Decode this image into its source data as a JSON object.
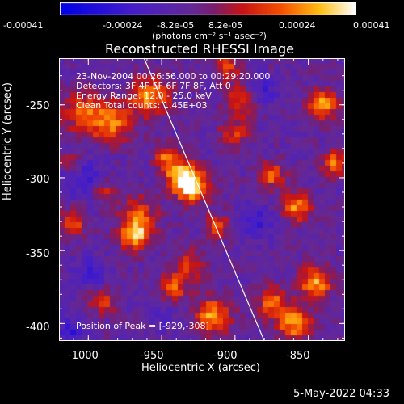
{
  "header": {
    "colorbar_ticks": [
      "-0.00041",
      "-0.00024",
      "-8.2e-05",
      "8.2e-05",
      "0.00024",
      "0.00041"
    ],
    "colorbar_units": "(photons cm⁻² s⁻¹ asec⁻²)",
    "title": "Reconstructed RHESSI Image"
  },
  "overlay": {
    "line1": "23-Nov-2004 00:26:56.000 to 00:29:20.000",
    "line2": "Detectors: 3F 4F 5F 6F 7F 8F, Att 0",
    "line3": "Energy Range: 12.0 - 25.0 keV",
    "line4": "Clean    Total counts: 1.45E+03",
    "peak": "Position of Peak = [-929,-308]"
  },
  "footer": {
    "timestamp": "5-May-2022 04:33"
  },
  "chart_data": {
    "type": "heatmap",
    "title": "Reconstructed RHESSI Image",
    "xlabel": "Heliocentric X (arcsec)",
    "ylabel": "Heliocentric Y (arcsec)",
    "xlim": [
      -1020,
      -825
    ],
    "ylim": [
      -412,
      -218
    ],
    "xticks": [
      -1000,
      -950,
      -900,
      -850
    ],
    "yticks": [
      -400,
      -350,
      -300,
      -250
    ],
    "xtick_labels": [
      "-1000",
      "-950",
      "-900",
      "-850"
    ],
    "ytick_labels": [
      "-400",
      "-350",
      "-300",
      "-250"
    ],
    "colorbar": {
      "min": -0.00041,
      "max": 0.00041
    },
    "limb_line": [
      [
        -962,
        -218
      ],
      [
        -880,
        -412
      ]
    ],
    "peak": [
      -929,
      -308
    ],
    "blobs": [
      [
        -929,
        -306,
        11,
        1.0
      ],
      [
        -938,
        -298,
        10,
        0.75
      ],
      [
        -968,
        -340,
        10,
        0.85
      ],
      [
        -966,
        -325,
        12,
        0.55
      ],
      [
        -985,
        -262,
        14,
        0.7
      ],
      [
        -958,
        -245,
        13,
        0.75
      ],
      [
        -1005,
        -255,
        13,
        0.55
      ],
      [
        -1012,
        -290,
        8,
        0.45
      ],
      [
        -912,
        -333,
        8,
        0.6
      ],
      [
        -930,
        -360,
        10,
        0.5
      ],
      [
        -948,
        -285,
        8,
        0.55
      ],
      [
        -900,
        -270,
        10,
        0.45
      ],
      [
        -875,
        -298,
        9,
        0.6
      ],
      [
        -858,
        -320,
        10,
        0.7
      ],
      [
        -840,
        -250,
        10,
        0.75
      ],
      [
        -832,
        -290,
        9,
        0.65
      ],
      [
        -845,
        -372,
        11,
        0.8
      ],
      [
        -860,
        -400,
        12,
        0.75
      ],
      [
        -875,
        -385,
        10,
        0.6
      ],
      [
        -915,
        -395,
        12,
        0.75
      ],
      [
        -942,
        -375,
        10,
        0.55
      ],
      [
        -990,
        -385,
        9,
        0.5
      ],
      [
        -1010,
        -330,
        9,
        0.55
      ],
      [
        -990,
        -310,
        8,
        0.4
      ],
      [
        -896,
        -248,
        10,
        0.5
      ],
      [
        -905,
        -225,
        9,
        0.5
      ]
    ],
    "dips": [
      [
        -1005,
        -300,
        14,
        0.6
      ],
      [
        -1012,
        -405,
        10,
        0.6
      ],
      [
        -885,
        -330,
        12,
        0.5
      ],
      [
        -950,
        -395,
        9,
        0.4
      ],
      [
        -880,
        -240,
        9,
        0.5
      ],
      [
        -998,
        -365,
        10,
        0.55
      ]
    ]
  }
}
